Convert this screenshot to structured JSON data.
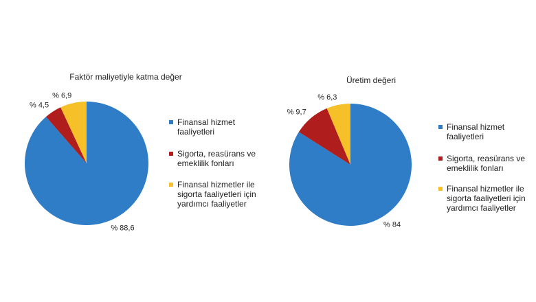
{
  "chart_data": [
    {
      "type": "pie",
      "title": "Faktör maliyetiyle katma değer",
      "categories": [
        "Finansal hizmet faaliyetleri",
        "Sigorta, reasürans ve emeklilik fonları",
        "Finansal hizmetler ile sigorta faaliyetleri için yardımcı faaliyetler"
      ],
      "values": [
        88.6,
        4.5,
        6.9
      ],
      "value_labels": [
        "% 88,6",
        "% 4,5",
        "% 6,9"
      ],
      "colors": [
        "#2e7dc6",
        "#b01d1d",
        "#f6c128"
      ]
    },
    {
      "type": "pie",
      "title": "Üretim değeri",
      "categories": [
        "Finansal hizmet faaliyetleri",
        "Sigorta, reasürans ve emeklilik fonları",
        "Finansal hizmetler ile sigorta faaliyetleri için yardımcı faaliyetler"
      ],
      "values": [
        84,
        9.7,
        6.3
      ],
      "value_labels": [
        "% 84",
        "% 9,7",
        "% 6,3"
      ],
      "colors": [
        "#2e7dc6",
        "#b01d1d",
        "#f6c128"
      ]
    }
  ]
}
